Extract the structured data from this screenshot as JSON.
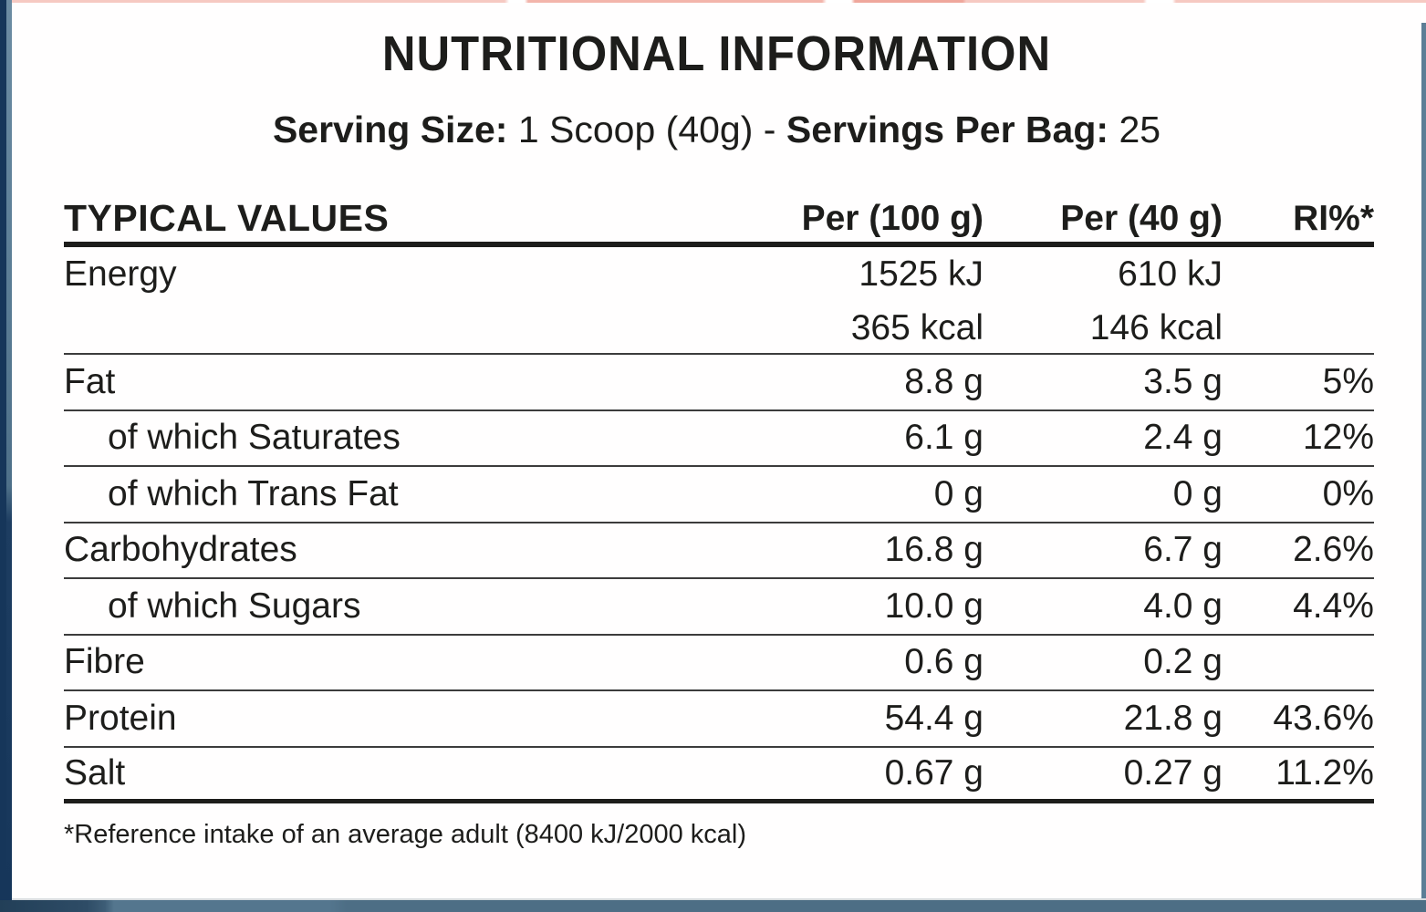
{
  "title": "NUTRITIONAL INFORMATION",
  "serving": {
    "size_label": "Serving Size:",
    "size_value": "1 Scoop (40g)",
    "separator": "-",
    "per_bag_label": "Servings Per Bag:",
    "per_bag_value": "25"
  },
  "table": {
    "headers": {
      "col1": "TYPICAL VALUES",
      "col2": "Per (100 g)",
      "col3": "Per (40 g)",
      "col4": "RI%*"
    },
    "rows": [
      {
        "label": "Energy",
        "indent": false,
        "per100": "1525 kJ",
        "per40": "610 kJ",
        "ri": "",
        "per100_line2": "365 kcal",
        "per40_line2": "146 kcal",
        "ri_line2": ""
      },
      {
        "label": "Fat",
        "indent": false,
        "per100": "8.8 g",
        "per40": "3.5 g",
        "ri": "5%"
      },
      {
        "label": "of which Saturates",
        "indent": true,
        "per100": "6.1 g",
        "per40": "2.4 g",
        "ri": "12%"
      },
      {
        "label": "of which Trans Fat",
        "indent": true,
        "per100": "0 g",
        "per40": "0 g",
        "ri": "0%"
      },
      {
        "label": "Carbohydrates",
        "indent": false,
        "per100": "16.8 g",
        "per40": "6.7 g",
        "ri": "2.6%"
      },
      {
        "label": "of which Sugars",
        "indent": true,
        "per100": "10.0 g",
        "per40": "4.0 g",
        "ri": "4.4%"
      },
      {
        "label": "Fibre",
        "indent": false,
        "per100": "0.6 g",
        "per40": "0.2 g",
        "ri": ""
      },
      {
        "label": "Protein",
        "indent": false,
        "per100": "54.4 g",
        "per40": "21.8 g",
        "ri": "43.6%"
      },
      {
        "label": "Salt",
        "indent": false,
        "per100": "0.67 g",
        "per40": "0.27 g",
        "ri": "11.2%"
      }
    ]
  },
  "footnote": "*Reference intake of an average adult (8400 kJ/2000 kcal)",
  "colors": {
    "text": "#1d1d1b",
    "rule_thin": "#3c3c3c",
    "rule_thick": "#1d1d1b",
    "edge_navy": "#16365a",
    "edge_slate": "#5c7e96",
    "edge_salmon": "#f3b5ab",
    "bottom_bar": "#4d6e85",
    "bg": "#ffffff"
  }
}
